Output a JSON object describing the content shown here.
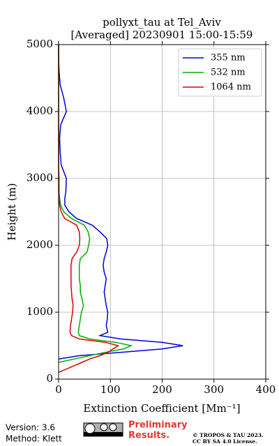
{
  "chart_data": {
    "type": "profile",
    "title": "pollyxt_tau at Tel_Aviv",
    "subtitle": "[Averaged] 20230901 15:00-15:59",
    "x_label": "Extinction Coefficient [Mm⁻¹]",
    "y_label": "Height (m)",
    "xlim": [
      0,
      400
    ],
    "xticks": [
      0,
      100,
      200,
      300,
      400
    ],
    "ylim": [
      0,
      5000
    ],
    "yticks": [
      0,
      1000,
      2000,
      3000,
      4000,
      5000
    ],
    "grid": true,
    "legend": "upper right",
    "heights": [
      100,
      200,
      250,
      300,
      350,
      400,
      450,
      500,
      550,
      600,
      650,
      700,
      800,
      900,
      1000,
      1100,
      1200,
      1300,
      1400,
      1500,
      1600,
      1700,
      1800,
      1900,
      2000,
      2100,
      2200,
      2300,
      2400,
      2500,
      2600,
      2700,
      2800,
      3000,
      3200,
      3400,
      3600,
      3800,
      4000,
      4200,
      4400,
      4600,
      4800,
      5000
    ],
    "series": [
      {
        "name": "355 nm",
        "color": "#0000dd",
        "values": [
          null,
          null,
          null,
          0,
          40,
          120,
          200,
          240,
          200,
          120,
          80,
          95,
          92,
          94,
          95,
          92,
          90,
          88,
          90,
          92,
          88,
          86,
          88,
          92,
          95,
          93,
          80,
          65,
          35,
          20,
          12,
          12,
          14,
          15,
          5,
          3,
          2,
          4,
          15,
          10,
          3,
          1,
          0,
          0
        ]
      },
      {
        "name": "532 nm",
        "color": "#00b000",
        "values": [
          null,
          null,
          0,
          30,
          60,
          90,
          125,
          140,
          110,
          60,
          40,
          38,
          40,
          42,
          44,
          48,
          45,
          42,
          42,
          40,
          40,
          40,
          42,
          55,
          58,
          60,
          57,
          50,
          25,
          10,
          4,
          2,
          1,
          1,
          0,
          0,
          0,
          0,
          0,
          0,
          0,
          0,
          0,
          0
        ]
      },
      {
        "name": "1064 nm",
        "color": "#dd0000",
        "values": [
          0,
          30,
          45,
          60,
          80,
          95,
          105,
          115,
          90,
          40,
          25,
          22,
          23,
          25,
          27,
          28,
          26,
          25,
          24,
          24,
          24,
          24,
          26,
          35,
          40,
          41,
          40,
          35,
          12,
          5,
          2,
          1,
          0,
          0,
          0,
          0,
          0,
          0,
          0,
          0,
          0,
          0,
          0,
          0
        ]
      }
    ]
  },
  "footer": {
    "version": "Version: 3.6",
    "method": "Method: Klett",
    "preliminary": [
      "Preliminary",
      "Results."
    ],
    "license": [
      "© TROPOS & TAU 2023.",
      "CC BY SA 4.0 License."
    ]
  }
}
